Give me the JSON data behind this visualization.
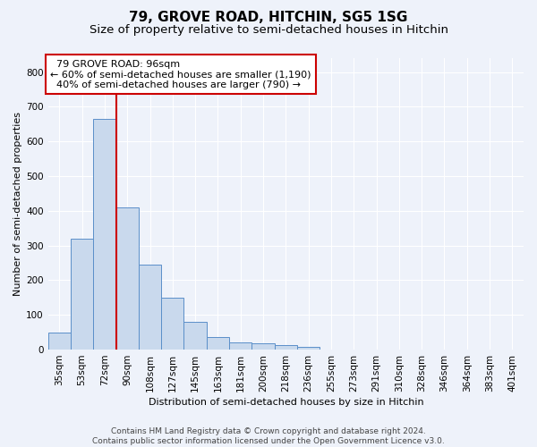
{
  "title": "79, GROVE ROAD, HITCHIN, SG5 1SG",
  "subtitle": "Size of property relative to semi-detached houses in Hitchin",
  "xlabel": "Distribution of semi-detached houses by size in Hitchin",
  "ylabel": "Number of semi-detached properties",
  "categories": [
    "35sqm",
    "53sqm",
    "72sqm",
    "90sqm",
    "108sqm",
    "127sqm",
    "145sqm",
    "163sqm",
    "181sqm",
    "200sqm",
    "218sqm",
    "236sqm",
    "255sqm",
    "273sqm",
    "291sqm",
    "310sqm",
    "328sqm",
    "346sqm",
    "364sqm",
    "383sqm",
    "401sqm"
  ],
  "values": [
    50,
    320,
    665,
    410,
    245,
    150,
    80,
    37,
    22,
    18,
    12,
    8,
    0,
    0,
    0,
    0,
    0,
    0,
    0,
    0,
    0
  ],
  "bar_color": "#c9d9ed",
  "bar_edge_color": "#5b8fc9",
  "annotation_box_color": "#ffffff",
  "annotation_box_edge": "#cc0000",
  "vline_color": "#cc0000",
  "vline_x_index": 3,
  "ylim": [
    0,
    840
  ],
  "yticks": [
    0,
    100,
    200,
    300,
    400,
    500,
    600,
    700,
    800
  ],
  "background_color": "#eef2fa",
  "grid_color": "#ffffff",
  "footer": "Contains HM Land Registry data © Crown copyright and database right 2024.\nContains public sector information licensed under the Open Government Licence v3.0.",
  "title_fontsize": 11,
  "subtitle_fontsize": 9.5,
  "axis_label_fontsize": 8,
  "tick_fontsize": 7.5,
  "footer_fontsize": 6.5
}
